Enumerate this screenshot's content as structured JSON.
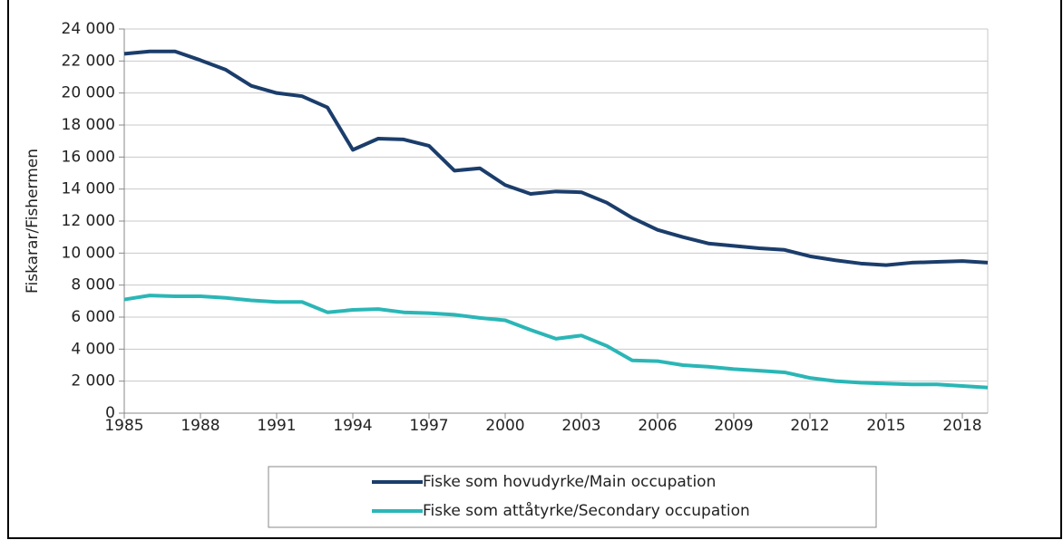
{
  "chart_data": {
    "type": "line",
    "y_label": "Fiskarar/Fishermen",
    "x": [
      1985,
      1986,
      1987,
      1988,
      1989,
      1990,
      1991,
      1992,
      1993,
      1994,
      1995,
      1996,
      1997,
      1998,
      1999,
      2000,
      2001,
      2002,
      2003,
      2004,
      2005,
      2006,
      2007,
      2008,
      2009,
      2010,
      2011,
      2012,
      2013,
      2014,
      2015,
      2016,
      2017,
      2018,
      2019
    ],
    "series": [
      {
        "name": "Fiske som hovudyrke/Main occupation",
        "color": "#1b3d6b",
        "values": [
          22450,
          22600,
          22600,
          22050,
          21450,
          20450,
          20000,
          19800,
          19100,
          16450,
          17150,
          17100,
          16700,
          15150,
          15300,
          14250,
          13700,
          13850,
          13800,
          13150,
          12200,
          11450,
          11000,
          10600,
          10450,
          10300,
          10200,
          9800,
          9550,
          9350,
          9250,
          9400,
          9450,
          9500,
          9400
        ]
      },
      {
        "name": "Fiske som attåtyrke/Secondary occupation",
        "color": "#2bb6b6",
        "values": [
          7100,
          7350,
          7300,
          7300,
          7200,
          7050,
          6950,
          6950,
          6300,
          6450,
          6500,
          6300,
          6250,
          6150,
          5950,
          5800,
          5200,
          4650,
          4850,
          4200,
          3300,
          3250,
          3000,
          2900,
          2750,
          2650,
          2550,
          2200,
          2000,
          1900,
          1850,
          1800,
          1800,
          1700,
          1600
        ]
      }
    ],
    "xlim": [
      1985,
      2019
    ],
    "xticks": [
      1985,
      1988,
      1991,
      1994,
      1997,
      2000,
      2003,
      2006,
      2009,
      2012,
      2015,
      2018
    ],
    "ylim": [
      0,
      24000
    ],
    "yticks": [
      0,
      {
        "value": 2000,
        "label": "2 000"
      },
      {
        "value": 4000,
        "label": "4 000"
      },
      {
        "value": 6000,
        "label": "6 000"
      },
      {
        "value": 8000,
        "label": "8 000"
      },
      {
        "value": 10000,
        "label": "10 000"
      },
      {
        "value": 12000,
        "label": "12 000"
      },
      {
        "value": 14000,
        "label": "14 000"
      },
      {
        "value": 16000,
        "label": "16 000"
      },
      {
        "value": 18000,
        "label": "18 000"
      },
      {
        "value": 20000,
        "label": "20 000"
      },
      {
        "value": 22000,
        "label": "22 000"
      },
      {
        "value": 24000,
        "label": "24 000"
      }
    ],
    "grid": true
  }
}
